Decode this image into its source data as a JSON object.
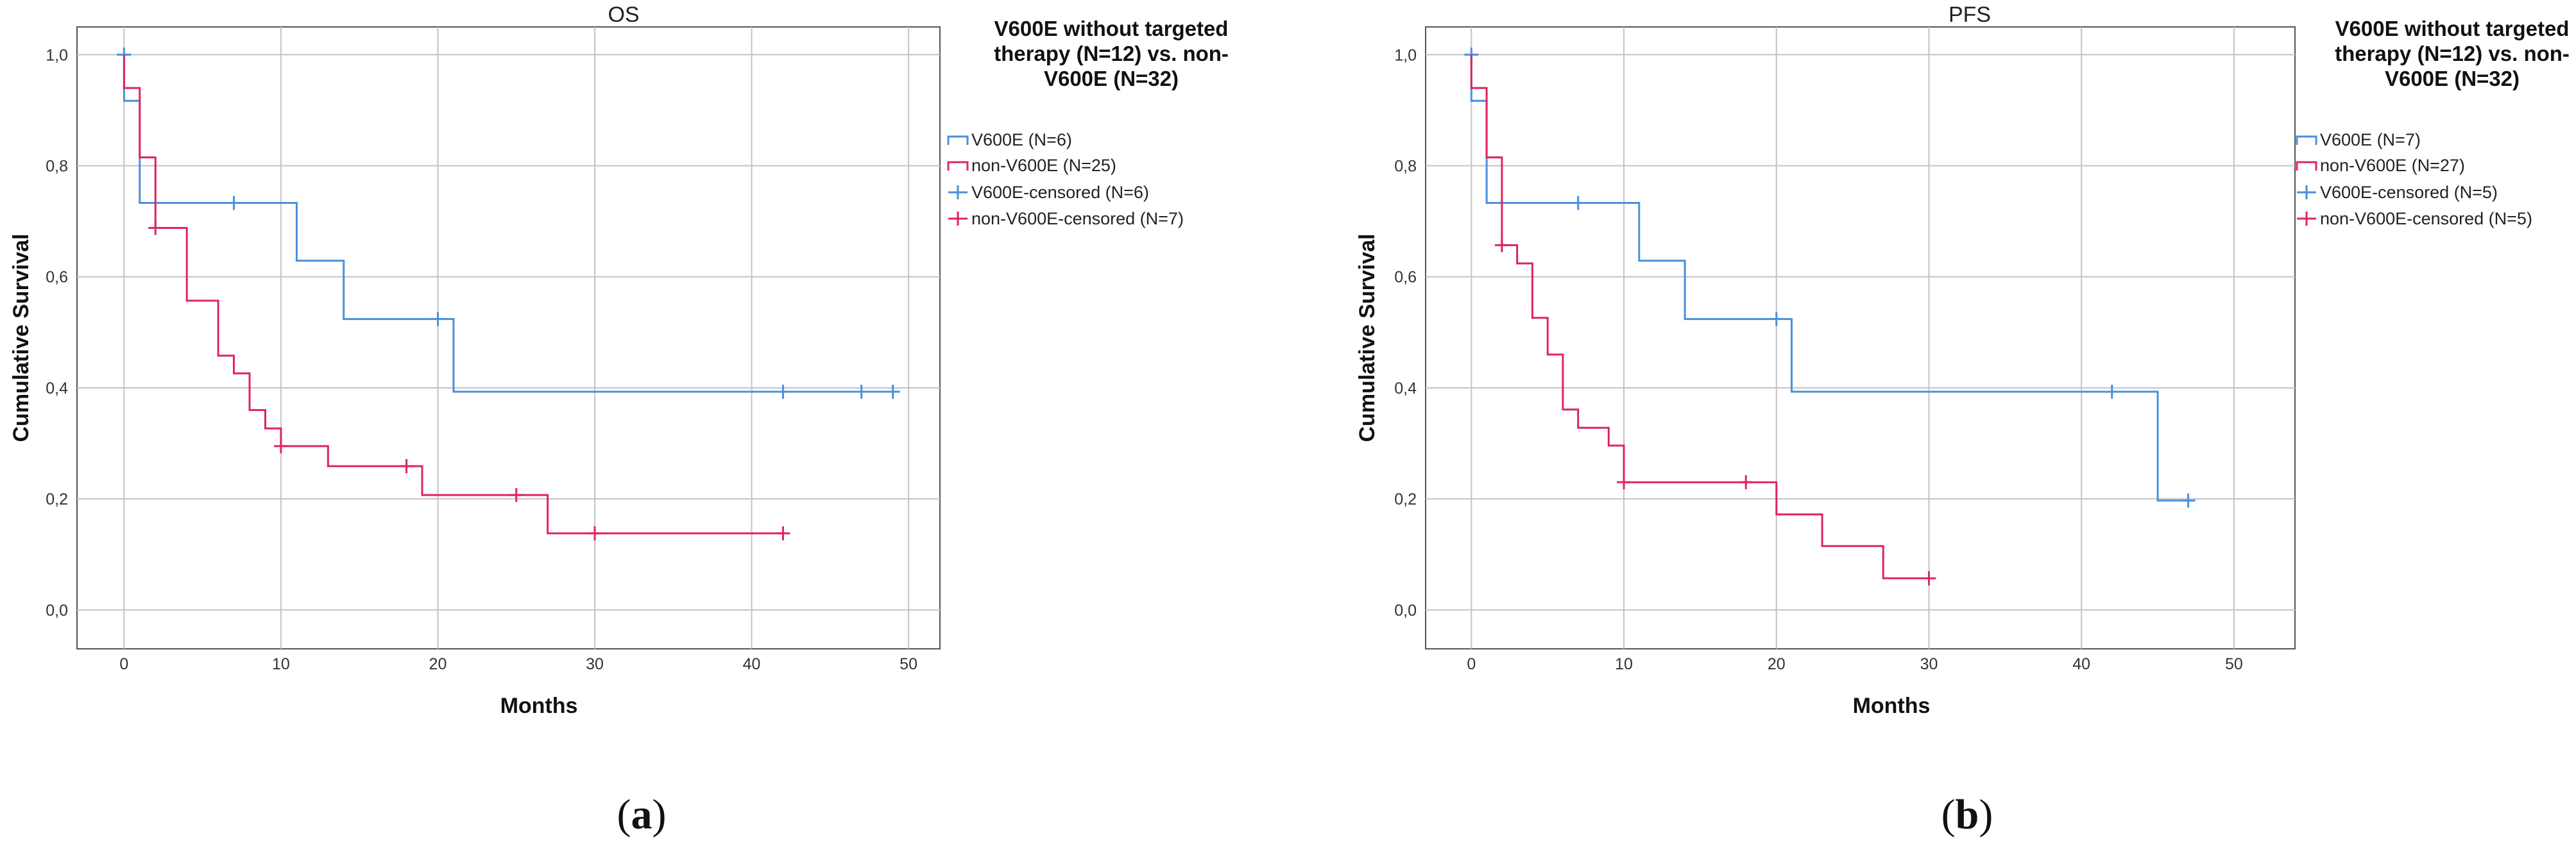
{
  "colors": {
    "v600e": "#4a8fdd",
    "non_v600e": "#e0245e",
    "grid": "#c4c4c4",
    "axis": "#555555"
  },
  "chart_data": [
    {
      "type": "line",
      "panel_label": "a",
      "title": "OS",
      "xlabel": "Months",
      "ylabel": "Cumulative Survival",
      "xlim": [
        -3,
        52
      ],
      "ylim": [
        -0.07,
        1.05
      ],
      "xticks": [
        "0",
        "10",
        "20",
        "30",
        "40",
        "50"
      ],
      "yticks": [
        "0,0",
        "0,2",
        "0,4",
        "0,6",
        "0,8",
        "1,0"
      ],
      "legend": {
        "title_lines": [
          "V600E without targeted",
          "therapy (N=12) vs. non-",
          "V600E (N=32)"
        ],
        "entries": [
          "V600E (N=6)",
          "non-V600E (N=25)",
          "V600E-censored (N=6)",
          "non-V600E-censored (N=7)"
        ]
      },
      "series": [
        {
          "name": "V600E",
          "color": "#4a8fdd",
          "steps": [
            [
              0,
              1.0
            ],
            [
              0,
              0.917
            ],
            [
              1,
              0.917
            ],
            [
              1,
              0.733
            ],
            [
              11,
              0.733
            ],
            [
              11,
              0.629
            ],
            [
              14,
              0.629
            ],
            [
              14,
              0.524
            ],
            [
              21,
              0.524
            ],
            [
              21,
              0.393
            ],
            [
              49,
              0.393
            ]
          ],
          "censored": [
            [
              0,
              1.0
            ],
            [
              7,
              0.733
            ],
            [
              20,
              0.524
            ],
            [
              42,
              0.393
            ],
            [
              47,
              0.393
            ],
            [
              49,
              0.393
            ]
          ]
        },
        {
          "name": "non-V600E",
          "color": "#e0245e",
          "steps": [
            [
              0,
              1.0
            ],
            [
              0,
              0.94
            ],
            [
              1,
              0.94
            ],
            [
              1,
              0.815
            ],
            [
              2,
              0.815
            ],
            [
              2,
              0.688
            ],
            [
              4,
              0.688
            ],
            [
              4,
              0.557
            ],
            [
              6,
              0.557
            ],
            [
              6,
              0.458
            ],
            [
              7,
              0.458
            ],
            [
              7,
              0.426
            ],
            [
              8,
              0.426
            ],
            [
              8,
              0.36
            ],
            [
              9,
              0.36
            ],
            [
              9,
              0.327
            ],
            [
              10,
              0.327
            ],
            [
              10,
              0.295
            ],
            [
              13,
              0.295
            ],
            [
              13,
              0.259
            ],
            [
              19,
              0.259
            ],
            [
              19,
              0.207
            ],
            [
              27,
              0.207
            ],
            [
              27,
              0.138
            ],
            [
              42,
              0.138
            ]
          ],
          "censored": [
            [
              2,
              0.688
            ],
            [
              10,
              0.295
            ],
            [
              18,
              0.259
            ],
            [
              25,
              0.207
            ],
            [
              30,
              0.138
            ],
            [
              42,
              0.138
            ]
          ]
        }
      ]
    },
    {
      "type": "line",
      "panel_label": "b",
      "title": "PFS",
      "xlabel": "Months",
      "ylabel": "Cumulative Survival",
      "xlim": [
        -3,
        54
      ],
      "ylim": [
        -0.07,
        1.05
      ],
      "xticks": [
        "0",
        "10",
        "20",
        "30",
        "40",
        "50"
      ],
      "yticks": [
        "0,0",
        "0,2",
        "0,4",
        "0,6",
        "0,8",
        "1,0"
      ],
      "legend": {
        "title_lines": [
          "V600E without targeted",
          "therapy (N=12) vs. non-",
          "V600E (N=32)"
        ],
        "entries": [
          "V600E (N=7)",
          "non-V600E (N=27)",
          "V600E-censored (N=5)",
          "non-V600E-censored (N=5)"
        ]
      },
      "series": [
        {
          "name": "V600E",
          "color": "#4a8fdd",
          "steps": [
            [
              0,
              1.0
            ],
            [
              0,
              0.917
            ],
            [
              1,
              0.917
            ],
            [
              1,
              0.733
            ],
            [
              11,
              0.733
            ],
            [
              11,
              0.629
            ],
            [
              14,
              0.629
            ],
            [
              14,
              0.524
            ],
            [
              21,
              0.524
            ],
            [
              21,
              0.393
            ],
            [
              45,
              0.393
            ],
            [
              45,
              0.197
            ],
            [
              47,
              0.197
            ]
          ],
          "censored": [
            [
              0,
              1.0
            ],
            [
              7,
              0.733
            ],
            [
              20,
              0.524
            ],
            [
              42,
              0.393
            ],
            [
              47,
              0.197
            ]
          ]
        },
        {
          "name": "non-V600E",
          "color": "#e0245e",
          "steps": [
            [
              0,
              1.0
            ],
            [
              0,
              0.94
            ],
            [
              1,
              0.94
            ],
            [
              1,
              0.815
            ],
            [
              2,
              0.815
            ],
            [
              2,
              0.657
            ],
            [
              3,
              0.657
            ],
            [
              3,
              0.624
            ],
            [
              4,
              0.624
            ],
            [
              4,
              0.526
            ],
            [
              5,
              0.526
            ],
            [
              5,
              0.46
            ],
            [
              6,
              0.46
            ],
            [
              6,
              0.361
            ],
            [
              7,
              0.361
            ],
            [
              7,
              0.328
            ],
            [
              9,
              0.328
            ],
            [
              9,
              0.296
            ],
            [
              10,
              0.296
            ],
            [
              10,
              0.23
            ],
            [
              20,
              0.23
            ],
            [
              20,
              0.172
            ],
            [
              23,
              0.172
            ],
            [
              23,
              0.115
            ],
            [
              27,
              0.115
            ],
            [
              27,
              0.057
            ],
            [
              30,
              0.057
            ]
          ],
          "censored": [
            [
              2,
              0.657
            ],
            [
              10,
              0.23
            ],
            [
              18,
              0.23
            ],
            [
              30,
              0.057
            ]
          ]
        }
      ]
    }
  ]
}
